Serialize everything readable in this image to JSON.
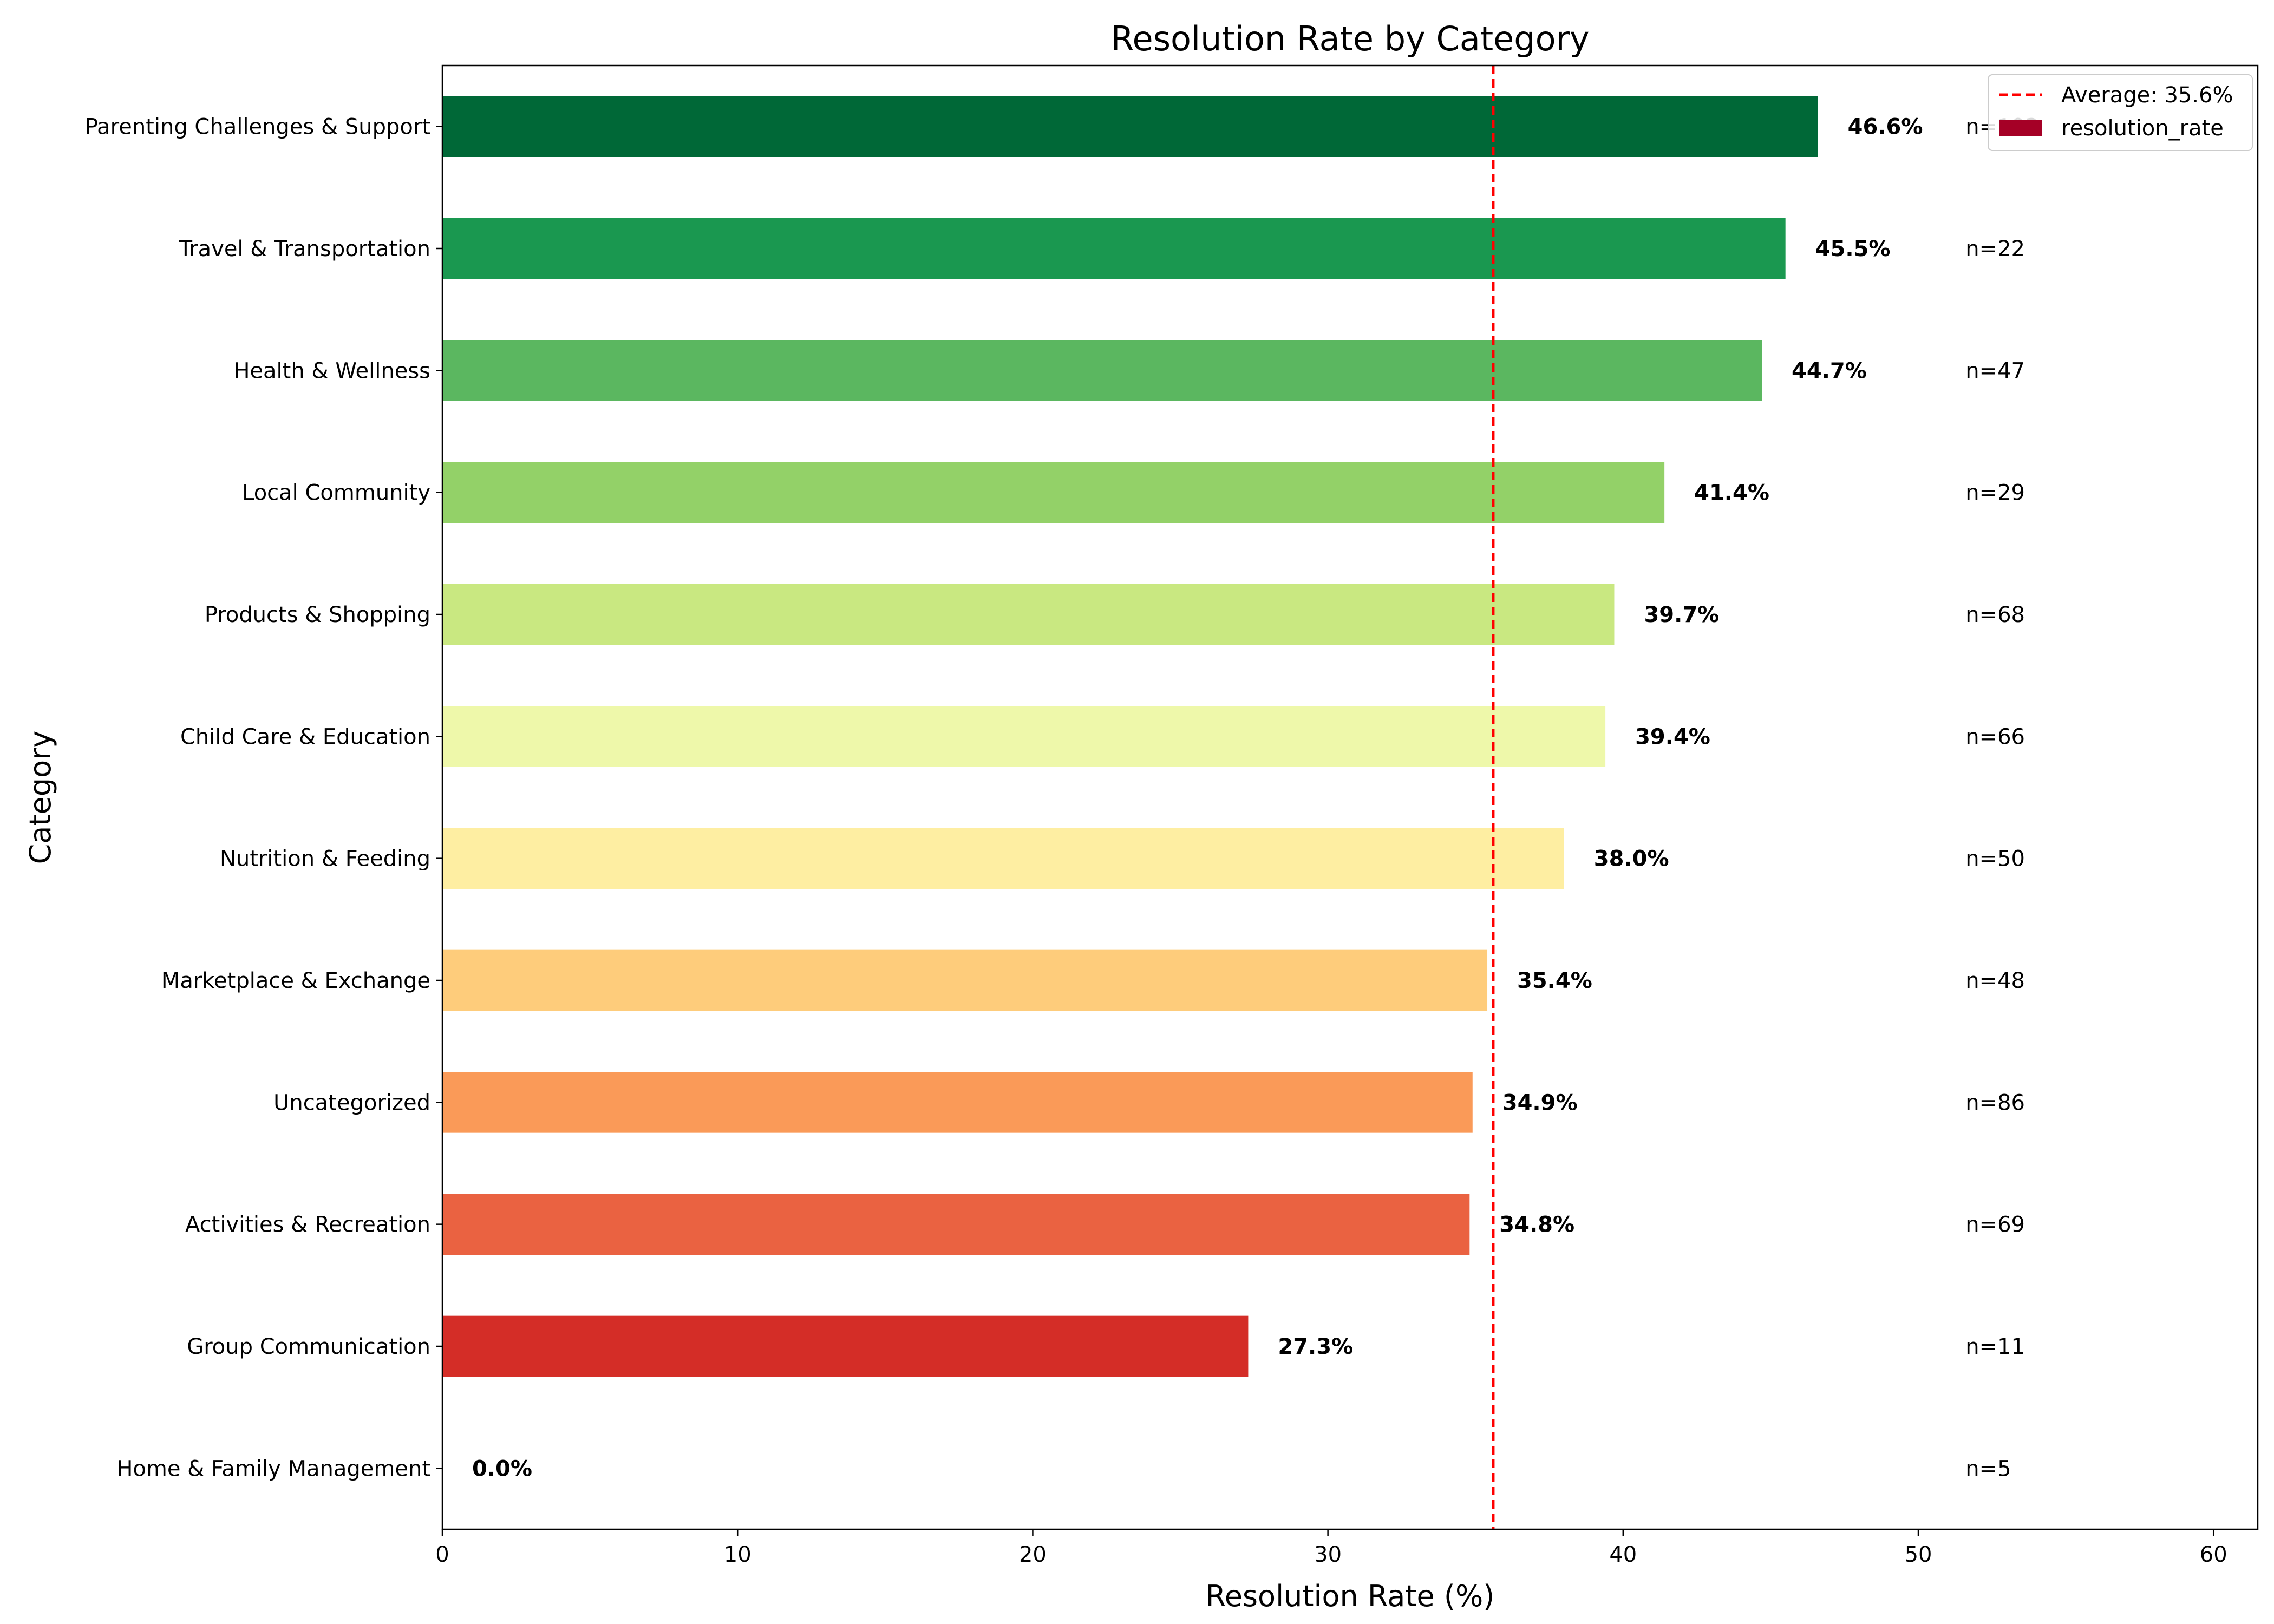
{
  "chart_data": {
    "type": "bar",
    "orientation": "horizontal",
    "title": "Resolution Rate by Category",
    "xlabel": "Resolution Rate (%)",
    "ylabel": "Category",
    "xlim": [
      0,
      61.5
    ],
    "xticks": [
      0,
      10,
      20,
      30,
      40,
      50,
      60
    ],
    "grid": false,
    "legend_position": "top-right",
    "categories": [
      "Parenting Challenges & Support",
      "Travel & Transportation",
      "Health & Wellness",
      "Local Community",
      "Products & Shopping",
      "Child Care & Education",
      "Nutrition & Feeding",
      "Marketplace & Exchange",
      "Uncategorized",
      "Activities & Recreation",
      "Group Communication",
      "Home & Family Management"
    ],
    "series": [
      {
        "name": "resolution_rate",
        "values": [
          46.6,
          45.5,
          44.7,
          41.4,
          39.7,
          39.4,
          38.0,
          35.4,
          34.9,
          34.8,
          27.3,
          0.0
        ],
        "value_labels": [
          "46.6%",
          "45.5%",
          "44.7%",
          "41.4%",
          "39.7%",
          "39.4%",
          "38.0%",
          "35.4%",
          "34.9%",
          "34.8%",
          "27.3%",
          "0.0%"
        ],
        "colors": [
          "#006837",
          "#1a9850",
          "#5bb760",
          "#93d168",
          "#c9e881",
          "#eef8aa",
          "#feeea2",
          "#fecc7b",
          "#fa9a58",
          "#ea6241",
          "#d42d27",
          "#a50026"
        ],
        "legend_color": "#a50026"
      }
    ],
    "sample_labels": [
      "n=103",
      "n=22",
      "n=47",
      "n=29",
      "n=68",
      "n=66",
      "n=50",
      "n=48",
      "n=86",
      "n=69",
      "n=11",
      "n=5"
    ],
    "average_line": {
      "label": "Average: 35.6%",
      "value": 35.6,
      "color": "#ff0000"
    }
  }
}
